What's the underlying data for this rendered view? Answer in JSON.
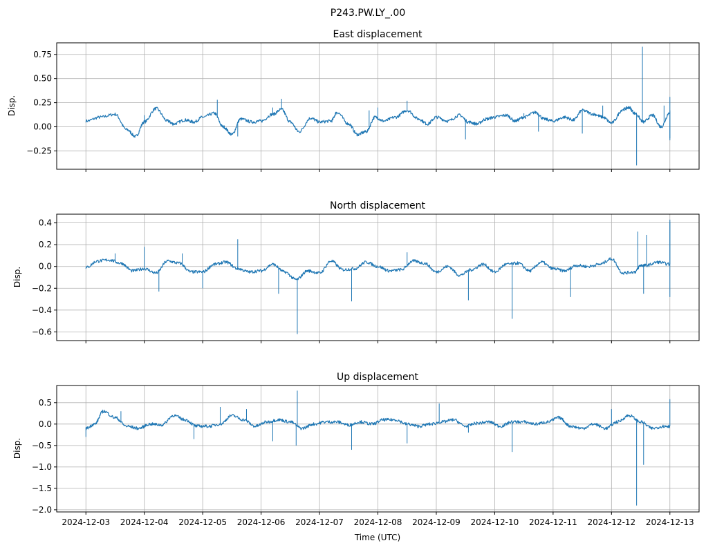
{
  "figure": {
    "suptitle": "P243.PW.LY_.00",
    "xlabel": "Time (UTC)",
    "line_color": "#1f77b4",
    "grid_color": "#b0b0b0"
  },
  "chart_data": [
    {
      "type": "line",
      "title": "East displacement",
      "xlabel": "",
      "ylabel": "Disp.",
      "x_unit": "days since 2024-12-03 00:00 UTC",
      "xlim": [
        -0.5,
        10.5
      ],
      "ylim": [
        -0.44,
        0.87
      ],
      "grid": true,
      "yticks": [
        -0.25,
        0.0,
        0.25,
        0.5,
        0.75
      ],
      "ytick_labels": [
        "−0.25",
        "0.00",
        "0.25",
        "0.50",
        "0.75"
      ],
      "xticks": [
        0,
        1,
        2,
        3,
        4,
        5,
        6,
        7,
        8,
        9,
        10
      ],
      "xtick_labels": [],
      "series": [
        {
          "name": "East",
          "x": [
            0,
            0.25,
            0.5,
            0.7,
            0.85,
            1.0,
            1.2,
            1.4,
            1.5,
            1.7,
            1.85,
            2.0,
            2.2,
            2.35,
            2.5,
            2.65,
            2.85,
            3.0,
            3.2,
            3.35,
            3.5,
            3.65,
            3.85,
            4.0,
            4.2,
            4.3,
            4.5,
            4.65,
            4.8,
            4.95,
            5.1,
            5.3,
            5.5,
            5.7,
            5.85,
            6.0,
            6.2,
            6.4,
            6.55,
            6.7,
            6.85,
            7.0,
            7.2,
            7.35,
            7.5,
            7.7,
            7.85,
            8.0,
            8.2,
            8.35,
            8.5,
            8.7,
            8.85,
            9.0,
            9.2,
            9.3,
            9.4,
            9.55,
            9.7,
            9.85,
            10.0
          ],
          "y": [
            0.06,
            0.1,
            0.13,
            -0.03,
            -0.1,
            0.05,
            0.19,
            0.06,
            0.03,
            0.07,
            0.05,
            0.1,
            0.14,
            0.0,
            -0.08,
            0.08,
            0.05,
            0.06,
            0.13,
            0.18,
            0.05,
            -0.05,
            0.09,
            0.05,
            0.06,
            0.15,
            0.03,
            -0.08,
            -0.05,
            0.1,
            0.06,
            0.1,
            0.17,
            0.08,
            0.03,
            0.1,
            0.06,
            0.12,
            0.05,
            0.03,
            0.08,
            0.1,
            0.12,
            0.06,
            0.1,
            0.15,
            0.08,
            0.06,
            0.1,
            0.07,
            0.17,
            0.13,
            0.1,
            0.04,
            0.18,
            0.2,
            0.14,
            0.05,
            0.12,
            0.0,
            0.15
          ],
          "spikes": [
            {
              "x": 1.0,
              "y": 0.12
            },
            {
              "x": 2.25,
              "y": 0.28
            },
            {
              "x": 2.6,
              "y": -0.1
            },
            {
              "x": 3.35,
              "y": 0.29
            },
            {
              "x": 3.2,
              "y": 0.2
            },
            {
              "x": 4.85,
              "y": 0.17
            },
            {
              "x": 5.0,
              "y": 0.2
            },
            {
              "x": 5.5,
              "y": 0.27
            },
            {
              "x": 6.5,
              "y": -0.13
            },
            {
              "x": 7.5,
              "y": 0.14
            },
            {
              "x": 7.75,
              "y": -0.05
            },
            {
              "x": 8.5,
              "y": -0.07
            },
            {
              "x": 8.85,
              "y": 0.22
            },
            {
              "x": 9.43,
              "y": -0.4
            },
            {
              "x": 9.53,
              "y": 0.83
            },
            {
              "x": 9.9,
              "y": 0.22
            },
            {
              "x": 10.13,
              "y": -0.12
            },
            {
              "x": 10.4,
              "y": 0.17
            },
            {
              "x": 10.75,
              "y": -0.14
            },
            {
              "x": 11.05,
              "y": 0.31
            }
          ]
        }
      ]
    },
    {
      "type": "line",
      "title": "North displacement",
      "xlabel": "",
      "ylabel": "Disp.",
      "x_unit": "days since 2024-12-03 00:00 UTC",
      "xlim": [
        -0.5,
        10.5
      ],
      "ylim": [
        -0.68,
        0.48
      ],
      "grid": true,
      "yticks": [
        -0.6,
        -0.4,
        -0.2,
        0.0,
        0.2,
        0.4
      ],
      "ytick_labels": [
        "−0.6",
        "−0.4",
        "−0.2",
        "0.0",
        "0.2",
        "0.4"
      ],
      "xticks": [
        0,
        1,
        2,
        3,
        4,
        5,
        6,
        7,
        8,
        9,
        10
      ],
      "xtick_labels": [],
      "series": [
        {
          "name": "North",
          "x": [
            0,
            0.2,
            0.4,
            0.6,
            0.8,
            1.0,
            1.2,
            1.4,
            1.6,
            1.8,
            2.0,
            2.2,
            2.4,
            2.6,
            2.8,
            3.0,
            3.2,
            3.4,
            3.6,
            3.8,
            4.0,
            4.2,
            4.4,
            4.6,
            4.8,
            5.0,
            5.2,
            5.4,
            5.6,
            5.8,
            6.0,
            6.2,
            6.4,
            6.6,
            6.8,
            7.0,
            7.2,
            7.4,
            7.6,
            7.8,
            8.0,
            8.2,
            8.4,
            8.6,
            8.8,
            9.0,
            9.2,
            9.4,
            9.5,
            9.6,
            9.8,
            10.0
          ],
          "y": [
            -0.01,
            0.05,
            0.06,
            0.03,
            -0.04,
            -0.02,
            -0.06,
            0.05,
            0.03,
            -0.05,
            -0.05,
            0.02,
            0.04,
            -0.02,
            -0.05,
            -0.04,
            0.02,
            -0.05,
            -0.12,
            -0.04,
            -0.06,
            0.05,
            -0.03,
            -0.02,
            0.04,
            0.0,
            -0.04,
            -0.03,
            0.05,
            0.03,
            -0.05,
            0.0,
            -0.08,
            -0.03,
            0.02,
            -0.05,
            0.02,
            0.03,
            -0.04,
            0.04,
            -0.02,
            -0.04,
            0.01,
            0.0,
            0.02,
            0.07,
            -0.06,
            -0.05,
            0.01,
            0.01,
            0.04,
            0.02
          ],
          "spikes": [
            {
              "x": 0.5,
              "y": 0.12
            },
            {
              "x": 1.0,
              "y": 0.18
            },
            {
              "x": 1.25,
              "y": -0.23
            },
            {
              "x": 1.65,
              "y": 0.12
            },
            {
              "x": 2.0,
              "y": -0.2
            },
            {
              "x": 2.6,
              "y": 0.25
            },
            {
              "x": 3.3,
              "y": -0.25
            },
            {
              "x": 3.62,
              "y": -0.62
            },
            {
              "x": 4.55,
              "y": -0.32
            },
            {
              "x": 5.5,
              "y": 0.13
            },
            {
              "x": 6.55,
              "y": -0.31
            },
            {
              "x": 7.3,
              "y": -0.48
            },
            {
              "x": 8.3,
              "y": -0.28
            },
            {
              "x": 9.45,
              "y": 0.32
            },
            {
              "x": 9.55,
              "y": -0.25
            },
            {
              "x": 9.6,
              "y": 0.29
            },
            {
              "x": 10.2,
              "y": 0.43
            },
            {
              "x": 10.35,
              "y": 0.41
            },
            {
              "x": 10.5,
              "y": -0.28
            }
          ]
        }
      ]
    },
    {
      "type": "line",
      "title": "Up displacement",
      "xlabel": "Time (UTC)",
      "ylabel": "Disp.",
      "x_unit": "days since 2024-12-03 00:00 UTC",
      "xlim": [
        -0.5,
        10.5
      ],
      "ylim": [
        -2.05,
        0.9
      ],
      "grid": true,
      "yticks": [
        -2.0,
        -1.5,
        -1.0,
        -0.5,
        0.0,
        0.5
      ],
      "ytick_labels": [
        "−2.0",
        "−1.5",
        "−1.0",
        "−0.5",
        "0.0",
        "0.5"
      ],
      "xticks": [
        0,
        1,
        2,
        3,
        4,
        5,
        6,
        7,
        8,
        9,
        10
      ],
      "xtick_labels": [
        "2024-12-03",
        "2024-12-04",
        "2024-12-05",
        "2024-12-06",
        "2024-12-07",
        "2024-12-08",
        "2024-12-09",
        "2024-12-10",
        "2024-12-11",
        "2024-12-12",
        "2024-12-13"
      ],
      "series": [
        {
          "name": "Up",
          "x": [
            0,
            0.15,
            0.3,
            0.5,
            0.7,
            0.9,
            1.1,
            1.3,
            1.5,
            1.7,
            1.9,
            2.1,
            2.3,
            2.5,
            2.7,
            2.9,
            3.1,
            3.3,
            3.5,
            3.7,
            3.9,
            4.1,
            4.3,
            4.5,
            4.7,
            4.9,
            5.1,
            5.3,
            5.5,
            5.7,
            5.9,
            6.1,
            6.3,
            6.5,
            6.7,
            6.9,
            7.1,
            7.3,
            7.5,
            7.7,
            7.9,
            8.1,
            8.3,
            8.5,
            8.7,
            8.9,
            9.1,
            9.3,
            9.5,
            9.7,
            9.9,
            10.0
          ],
          "y": [
            -0.1,
            0.0,
            0.3,
            0.15,
            -0.05,
            -0.1,
            0.0,
            -0.02,
            0.2,
            0.1,
            -0.05,
            -0.05,
            0.0,
            0.2,
            0.1,
            -0.05,
            0.05,
            0.1,
            0.05,
            -0.1,
            0.0,
            0.05,
            0.05,
            -0.02,
            0.05,
            0.0,
            0.1,
            0.1,
            0.0,
            -0.05,
            0.0,
            0.05,
            0.1,
            -0.05,
            0.02,
            0.05,
            -0.05,
            0.05,
            0.05,
            0.0,
            0.05,
            0.15,
            -0.05,
            -0.1,
            0.0,
            -0.1,
            0.05,
            0.2,
            0.05,
            -0.1,
            -0.05,
            -0.05
          ],
          "spikes": [
            {
              "x": 0.0,
              "y": -0.3
            },
            {
              "x": 0.6,
              "y": 0.3
            },
            {
              "x": 1.85,
              "y": -0.35
            },
            {
              "x": 2.3,
              "y": 0.4
            },
            {
              "x": 2.75,
              "y": 0.35
            },
            {
              "x": 3.2,
              "y": -0.4
            },
            {
              "x": 3.62,
              "y": 0.78
            },
            {
              "x": 3.6,
              "y": -0.5
            },
            {
              "x": 4.55,
              "y": -0.6
            },
            {
              "x": 5.5,
              "y": -0.45
            },
            {
              "x": 6.05,
              "y": 0.48
            },
            {
              "x": 6.55,
              "y": -0.2
            },
            {
              "x": 7.3,
              "y": -0.65
            },
            {
              "x": 9.43,
              "y": -1.9
            },
            {
              "x": 9.55,
              "y": -0.95
            },
            {
              "x": 10.2,
              "y": 0.58
            },
            {
              "x": 9.0,
              "y": 0.35
            }
          ]
        }
      ]
    }
  ]
}
